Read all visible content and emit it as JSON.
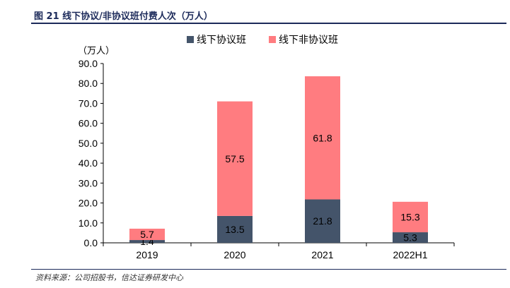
{
  "figure": {
    "title": "图 21  线下协议/非协议班付费人次（万人）",
    "source": "资料来源：公司招股书，信达证券研发中心"
  },
  "chart_data": {
    "type": "bar",
    "stacked": true,
    "categories": [
      "2019",
      "2020",
      "2021",
      "2022H1"
    ],
    "series": [
      {
        "name": "线下协议班",
        "values": [
          1.4,
          13.5,
          21.8,
          5.3
        ],
        "color": "#44546a"
      },
      {
        "name": "线下非协议班",
        "values": [
          5.7,
          57.5,
          61.8,
          15.3
        ],
        "color": "#ff7c80"
      }
    ],
    "unit_label": "（万人）",
    "ylim": [
      0,
      90
    ],
    "yticks": [
      "0.0",
      "10.0",
      "20.0",
      "30.0",
      "40.0",
      "50.0",
      "60.0",
      "70.0",
      "80.0",
      "90.0"
    ],
    "legend_position": "top",
    "grid": false
  }
}
